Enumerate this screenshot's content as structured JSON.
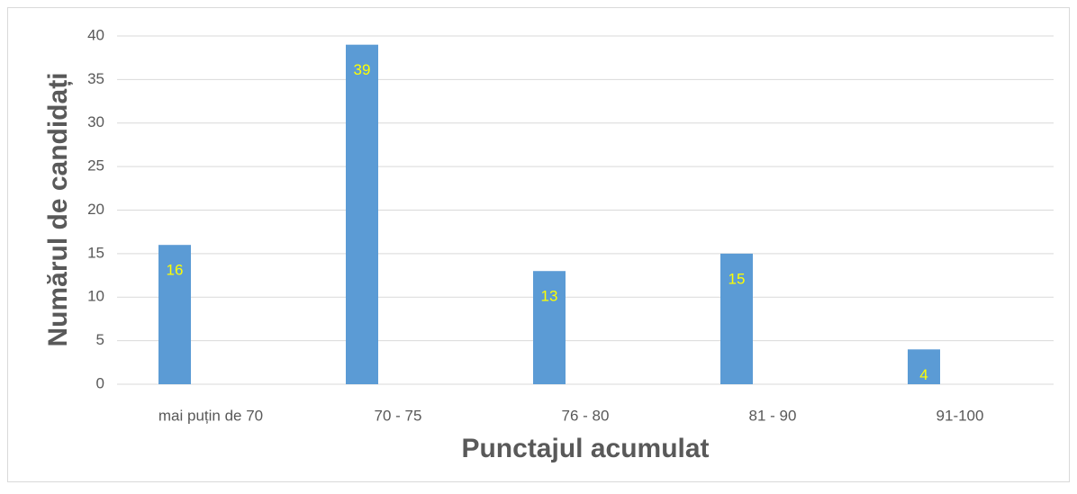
{
  "chart_data": {
    "type": "bar",
    "x_label": "Punctajul acumulat",
    "y_label": "Numărul de candidați",
    "categories": [
      "mai puțin de 70",
      "70 - 75",
      "76 - 80",
      "81 - 90",
      "91-100"
    ],
    "values": [
      16,
      39,
      13,
      15,
      4
    ],
    "color": "#5b9bd5",
    "ylim": [
      0,
      40
    ],
    "yticks": [
      0,
      5,
      10,
      15,
      20,
      25,
      30,
      35,
      40
    ],
    "grid": true
  }
}
